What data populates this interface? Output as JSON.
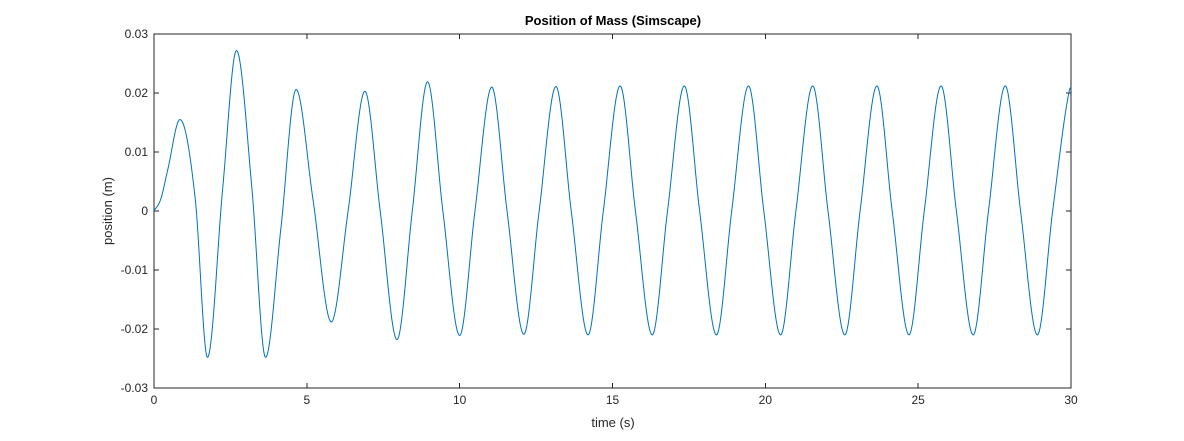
{
  "chart_data": {
    "type": "line",
    "title": "Position of Mass (Simscape)",
    "xlabel": "time (s)",
    "ylabel": "position (m)",
    "xlim": [
      0,
      30
    ],
    "ylim": [
      -0.03,
      0.03
    ],
    "xticks": [
      0,
      5,
      10,
      15,
      20,
      25,
      30
    ],
    "yticks": [
      -0.03,
      -0.02,
      -0.01,
      0,
      0.01,
      0.02,
      0.03
    ],
    "xtick_labels": [
      "0",
      "5",
      "10",
      "15",
      "20",
      "25",
      "30"
    ],
    "ytick_labels": [
      "-0.03",
      "-0.02",
      "-0.01",
      "0",
      "0.01",
      "0.02",
      "0.03"
    ],
    "grid": false,
    "box": true,
    "line_color": "#0072BD",
    "series": [
      {
        "x": [
          0,
          0.22,
          0.45,
          0.85,
          1.35,
          1.75,
          2.25,
          2.7,
          3.2,
          3.65,
          4.15,
          4.65,
          5.2,
          5.8,
          6.35,
          6.9,
          7.4,
          7.95,
          8.45,
          8.95,
          9.45,
          10.0,
          10.5,
          11.05,
          11.55,
          12.1,
          12.6,
          13.15,
          13.65,
          14.2,
          14.7,
          15.25,
          15.75,
          16.3,
          16.8,
          17.35,
          17.85,
          18.4,
          18.9,
          19.45,
          19.95,
          20.5,
          21.0,
          21.55,
          22.05,
          22.6,
          23.1,
          23.65,
          24.15,
          24.7,
          25.2,
          25.75,
          26.25,
          26.8,
          27.3,
          27.85,
          28.35,
          28.9,
          29.4,
          29.95,
          30.0
        ],
        "y": [
          0,
          0.002,
          0.007,
          0.0155,
          0.002,
          -0.0248,
          0.004,
          0.0272,
          0.004,
          -0.0248,
          -0.003,
          0.0206,
          0.002,
          -0.0188,
          0.0,
          0.0203,
          0.0,
          -0.0218,
          0.0,
          0.0219,
          0.0,
          -0.0211,
          0.0,
          0.021,
          0.0,
          -0.0209,
          0.0,
          0.0211,
          0.0,
          -0.021,
          0.0,
          0.0212,
          0.0,
          -0.021,
          0.0,
          0.0212,
          0.0,
          -0.021,
          0.0,
          0.0212,
          0.0,
          -0.021,
          0.0,
          0.0212,
          0.0,
          -0.021,
          0.0,
          0.0212,
          0.0,
          -0.021,
          0.0,
          0.0212,
          0.0,
          -0.021,
          0.0,
          0.0212,
          0.0,
          -0.021,
          0.0,
          0.0205,
          0.021
        ]
      }
    ]
  }
}
